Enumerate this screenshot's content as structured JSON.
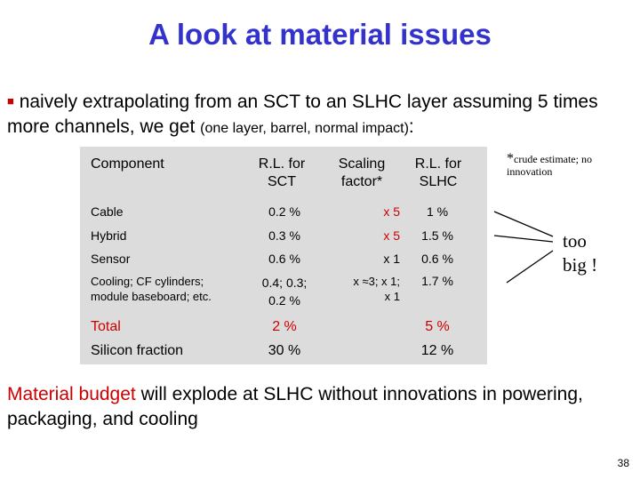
{
  "slide": {
    "title": "A look at material issues",
    "bullet": {
      "text": "naively extrapolating from an SCT to an SLHC layer assuming 5 times more channels, we get",
      "note": "(one layer, barrel, normal impact)",
      "suffix": ":"
    },
    "table": {
      "headers": {
        "component": "Component",
        "rl_sct_1": "R.L. for",
        "rl_sct_2": "SCT",
        "scaling_1": "Scaling",
        "scaling_2": "factor*",
        "rl_slhc_1": "R.L. for",
        "rl_slhc_2": "SLHC"
      },
      "rows": [
        {
          "component": "Cable",
          "rl_sct": "0.2 %",
          "scaling": "x 5",
          "rl_slhc": "1 %"
        },
        {
          "component": "Hybrid",
          "rl_sct": "0.3 %",
          "scaling": "x 5",
          "rl_slhc": "1.5 %"
        },
        {
          "component": "Sensor",
          "rl_sct": "0.6 %",
          "scaling": "x 1",
          "rl_slhc": "0.6 %"
        },
        {
          "component_1": "Cooling; CF cylinders;",
          "component_2": "module baseboard; etc.",
          "rl_sct_1": "0.4; 0.3;",
          "rl_sct_2": "0.2 %",
          "scaling_1": "x ≈3; x 1;",
          "scaling_2": "x 1",
          "rl_slhc": "1.7 %"
        }
      ],
      "total": {
        "label": "Total",
        "rl_sct": "2 %",
        "rl_slhc": "5 %"
      },
      "silicon": {
        "label": "Silicon fraction",
        "rl_sct": "30 %",
        "rl_slhc": "12 %"
      }
    },
    "side_note": {
      "star": "*",
      "text": "crude estimate; no innovation"
    },
    "too_big": {
      "line1": "too",
      "line2": "big !"
    },
    "conclusion": {
      "highlight": "Material budget",
      "text": " will explode at SLHC without innovations in powering, packaging, and cooling"
    },
    "page_number": "38"
  },
  "colors": {
    "title": "#3333cc",
    "accent_red": "#cc0000",
    "table_background": "#dcdcdc"
  }
}
